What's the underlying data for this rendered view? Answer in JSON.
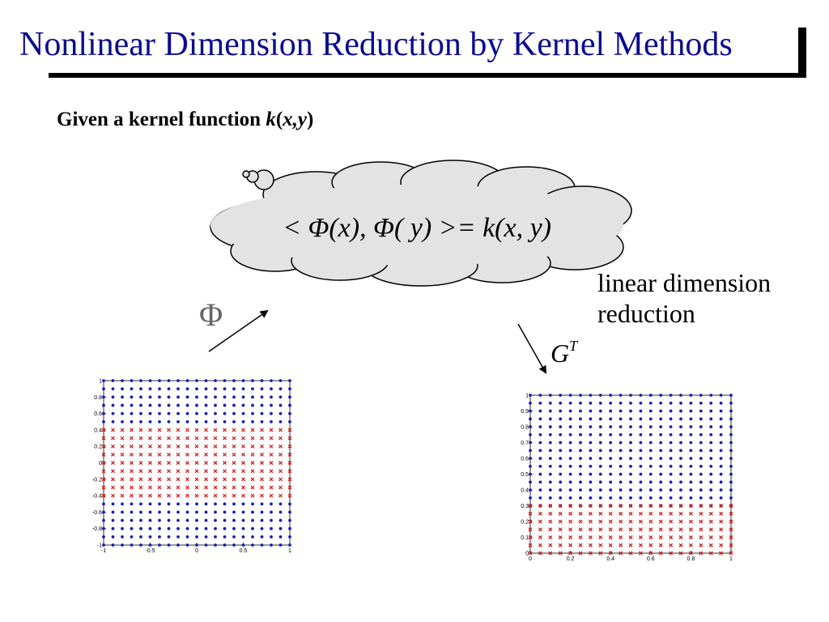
{
  "title": "Nonlinear Dimension Reduction by Kernel Methods",
  "subtitle": {
    "prefix": "Given a kernel function ",
    "kernel": "k",
    "open": "(",
    "args": "x,y",
    "close": ")"
  },
  "cloud_equation": "< Φ(x), Φ( y) >= k(x, y)",
  "phi_symbol": "Φ",
  "side_text": {
    "line1": "linear dimension",
    "line2": "reduction"
  },
  "gt_label": {
    "base": "G",
    "sup": "T"
  },
  "colors": {
    "title": "#0b0b8e",
    "blue": "#1c1cb4",
    "red": "#d42020",
    "cloud_fill": "#e3e3e3"
  },
  "chart_data": [
    {
      "type": "scatter",
      "title": "",
      "xlabel": "",
      "ylabel": "",
      "xlim": [
        -1,
        1
      ],
      "ylim": [
        -1,
        1
      ],
      "xticks": [
        "-1",
        "-0.5",
        "0",
        "0.5",
        "1"
      ],
      "yticks": [
        "-1",
        "-0.8",
        "-0.6",
        "-0.4",
        "-0.2",
        "0",
        "0.2",
        "0.4",
        "0.6",
        "0.8",
        "1"
      ],
      "grid": {
        "x": {
          "start": -1,
          "end": 1,
          "count": 21
        },
        "y": {
          "start": -1,
          "end": 1,
          "count": 21
        }
      },
      "series": [
        {
          "marker": "dot",
          "color": "#1c1cb4",
          "y_ranges": [
            [
              -1,
              -0.5
            ],
            [
              0.5,
              1
            ]
          ]
        },
        {
          "marker": "x",
          "color": "#d42020",
          "y_ranges": [
            [
              -0.4,
              0.4
            ]
          ]
        }
      ]
    },
    {
      "type": "scatter",
      "title": "",
      "xlabel": "",
      "ylabel": "",
      "xlim": [
        0,
        1
      ],
      "ylim": [
        0,
        1
      ],
      "xticks": [
        "0",
        "0.2",
        "0.4",
        "0.6",
        "0.8",
        "1"
      ],
      "yticks": [
        "0",
        "0.1",
        "0.2",
        "0.3",
        "0.4",
        "0.5",
        "0.6",
        "0.7",
        "0.8",
        "0.9",
        "1"
      ],
      "grid": {
        "x": {
          "start": 0,
          "end": 1,
          "count": 21
        },
        "y": {
          "start": 0,
          "end": 1,
          "count": 21
        }
      },
      "series": [
        {
          "marker": "dot",
          "color": "#1c1cb4",
          "y_ranges": [
            [
              0.3,
              1
            ]
          ]
        },
        {
          "marker": "x",
          "color": "#d42020",
          "y_ranges": [
            [
              0,
              0.3
            ]
          ]
        }
      ]
    }
  ]
}
